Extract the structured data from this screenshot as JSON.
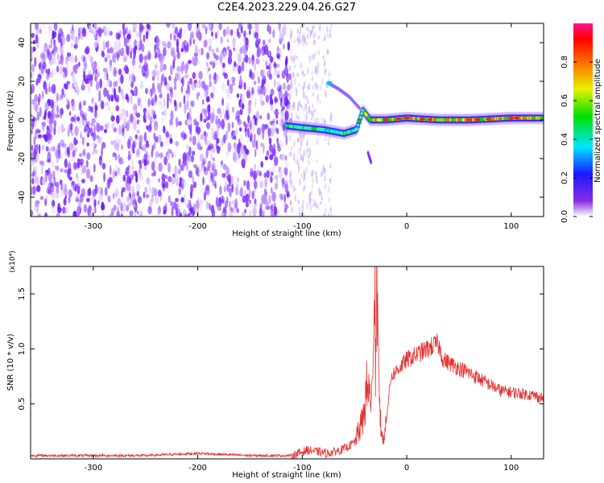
{
  "title": "C2E4.2023.229.04.26.G27",
  "colors": {
    "snr_line": "#e53030",
    "spectrogram_base": "#7b2cff",
    "frame": "#000000"
  },
  "chart_data": [
    {
      "type": "heatmap",
      "name": "spectrogram",
      "xlabel": "Height of straight line (km)",
      "ylabel": "Frequency (Hz)",
      "xlim": [
        -360,
        131
      ],
      "ylim": [
        -50,
        50
      ],
      "x_ticks": [
        -300,
        -200,
        -100,
        0,
        100
      ],
      "y_ticks": [
        -40,
        -20,
        0,
        20,
        40
      ],
      "colorbar": {
        "label": "Normalized spectral amplitude",
        "range": [
          0,
          1
        ],
        "ticks": [
          "0.0",
          "0.2",
          "0.4",
          "0.6",
          "0.8"
        ],
        "colormap": "rainbow"
      },
      "features": {
        "noise_region_x": [
          -360,
          -110
        ],
        "signal_track": [
          {
            "x": -115,
            "y": -3
          },
          {
            "x": -100,
            "y": -4
          },
          {
            "x": -80,
            "y": -5
          },
          {
            "x": -60,
            "y": -7
          },
          {
            "x": -48,
            "y": -5
          },
          {
            "x": -42,
            "y": 5
          },
          {
            "x": -35,
            "y": 0
          },
          {
            "x": -20,
            "y": 0
          },
          {
            "x": 0,
            "y": 1
          },
          {
            "x": 30,
            "y": 0
          },
          {
            "x": 60,
            "y": 0
          },
          {
            "x": 100,
            "y": 1
          },
          {
            "x": 131,
            "y": 1
          }
        ],
        "upper_branch": [
          {
            "x": -75,
            "y": 19
          },
          {
            "x": -65,
            "y": 16
          },
          {
            "x": -55,
            "y": 12
          },
          {
            "x": -45,
            "y": 6
          }
        ]
      }
    },
    {
      "type": "line",
      "name": "snr",
      "xlabel": "Height of straight line (km)",
      "ylabel": "SNR (10 * v/v)",
      "y_multiplier": "(x10⁴)",
      "xlim": [
        -360,
        131
      ],
      "ylim": [
        0,
        17500
      ],
      "x_ticks": [
        -300,
        -200,
        -100,
        0,
        100
      ],
      "y_ticks": [
        "0.5",
        "1.0",
        "1.5"
      ],
      "y_tick_values": [
        5000,
        10000,
        15000
      ],
      "series": [
        {
          "values": [
            [
              -360,
              300
            ],
            [
              -300,
              300
            ],
            [
              -250,
              300
            ],
            [
              -200,
              500
            ],
            [
              -150,
              300
            ],
            [
              -110,
              300
            ],
            [
              -95,
              800
            ],
            [
              -75,
              500
            ],
            [
              -60,
              900
            ],
            [
              -50,
              1500
            ],
            [
              -42,
              3500
            ],
            [
              -38,
              6500
            ],
            [
              -34,
              5500
            ],
            [
              -31,
              12000
            ],
            [
              -29,
              17500
            ],
            [
              -27,
              9500
            ],
            [
              -25,
              3000
            ],
            [
              -22,
              1500
            ],
            [
              -18,
              5000
            ],
            [
              -15,
              7500
            ],
            [
              -10,
              8000
            ],
            [
              0,
              9000
            ],
            [
              10,
              9500
            ],
            [
              20,
              10000
            ],
            [
              30,
              10500
            ],
            [
              35,
              9000
            ],
            [
              45,
              8500
            ],
            [
              60,
              7800
            ],
            [
              75,
              7000
            ],
            [
              90,
              6200
            ],
            [
              105,
              6000
            ],
            [
              120,
              5800
            ],
            [
              131,
              5500
            ]
          ]
        }
      ]
    }
  ]
}
